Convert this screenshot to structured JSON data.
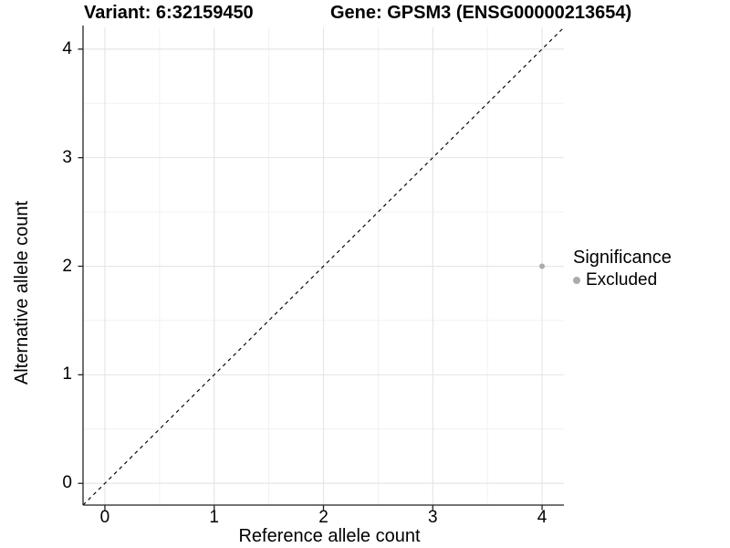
{
  "title": {
    "variant": "Variant: 6:32159450",
    "gene": "Gene: GPSM3 (ENSG00000213654)"
  },
  "legend": {
    "title": "Significance",
    "items": [
      {
        "label": "Excluded",
        "color": "#ababab"
      }
    ]
  },
  "chart_data": {
    "type": "scatter",
    "title_left": "Variant: 6:32159450",
    "title_right": "Gene: GPSM3 (ENSG00000213654)",
    "xlabel": "Reference allele count",
    "ylabel": "Alternative allele count",
    "xlim": [
      -0.2,
      4.2
    ],
    "ylim": [
      -0.2,
      4.2
    ],
    "x_ticks": [
      0,
      1,
      2,
      3,
      4
    ],
    "y_ticks": [
      0,
      1,
      2,
      3,
      4
    ],
    "x_minor_ticks": [
      0.5,
      1.5,
      2.5,
      3.5
    ],
    "y_minor_ticks": [
      0.5,
      1.5,
      2.5,
      3.5
    ],
    "grid": true,
    "legend_position": "right",
    "series": [
      {
        "name": "Excluded",
        "color": "#ababab",
        "points": [
          {
            "x": 4,
            "y": 2
          }
        ]
      }
    ],
    "reference_line": {
      "kind": "identity",
      "equation": "y = x",
      "style": "dashed",
      "color": "#000000"
    },
    "colors": {
      "grid_major": "#e4e4e4",
      "grid_minor": "#f1f1f1",
      "axis": "#222222",
      "tick_label": "#000000"
    }
  }
}
